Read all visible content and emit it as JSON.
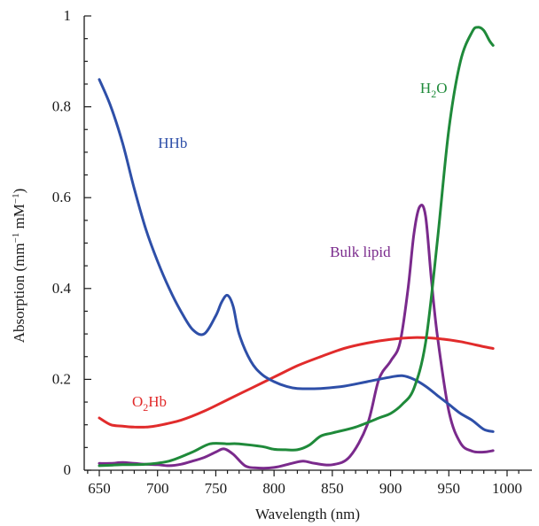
{
  "chart_data": {
    "type": "line",
    "title": "",
    "xlabel": "Wavelength (nm)",
    "ylabel": "Absorption (mm",
    "ylabel_sup1": "−1",
    "ylabel_mid": " mM",
    "ylabel_sup2": "−1",
    "ylabel_end": ")",
    "xlim": [
      630,
      1000
    ],
    "ylim": [
      0,
      1.0
    ],
    "x_ticks": [
      "650",
      "700",
      "750",
      "800",
      "850",
      "900",
      "950",
      "1000"
    ],
    "y_ticks": [
      "0",
      "0.2",
      "0.4",
      "0.6",
      "0.8",
      "1"
    ],
    "grid": false,
    "legend": "none",
    "series": [
      {
        "name": "HHb",
        "color": "#2e4fa8",
        "x": [
          650,
          660,
          670,
          680,
          690,
          700,
          710,
          720,
          730,
          740,
          750,
          755,
          760,
          765,
          770,
          780,
          790,
          800,
          810,
          820,
          840,
          860,
          880,
          900,
          910,
          920,
          930,
          940,
          950,
          960,
          970,
          980,
          988
        ],
        "y": [
          0.86,
          0.8,
          0.72,
          0.62,
          0.53,
          0.46,
          0.4,
          0.35,
          0.31,
          0.3,
          0.34,
          0.37,
          0.385,
          0.36,
          0.3,
          0.24,
          0.21,
          0.195,
          0.185,
          0.18,
          0.18,
          0.185,
          0.195,
          0.205,
          0.208,
          0.2,
          0.185,
          0.165,
          0.145,
          0.125,
          0.11,
          0.09,
          0.085
        ]
      },
      {
        "name": "O₂Hb",
        "label_main": "O",
        "label_sub": "2",
        "label_end": "Hb",
        "color": "#e12b2b",
        "x": [
          650,
          660,
          670,
          680,
          690,
          700,
          720,
          740,
          760,
          780,
          800,
          820,
          840,
          860,
          880,
          900,
          920,
          940,
          960,
          980,
          988
        ],
        "y": [
          0.115,
          0.1,
          0.097,
          0.095,
          0.095,
          0.098,
          0.11,
          0.13,
          0.155,
          0.18,
          0.205,
          0.23,
          0.25,
          0.268,
          0.28,
          0.288,
          0.292,
          0.29,
          0.283,
          0.272,
          0.268
        ]
      },
      {
        "name": "H₂O",
        "label_main": "H",
        "label_sub": "2",
        "label_end": "O",
        "color": "#1f8a3a",
        "x": [
          650,
          670,
          690,
          710,
          730,
          745,
          760,
          770,
          790,
          800,
          810,
          820,
          830,
          840,
          850,
          870,
          890,
          900,
          910,
          920,
          930,
          940,
          950,
          960,
          970,
          975,
          980,
          985,
          988
        ],
        "y": [
          0.01,
          0.012,
          0.013,
          0.02,
          0.04,
          0.058,
          0.058,
          0.058,
          0.052,
          0.046,
          0.045,
          0.045,
          0.055,
          0.075,
          0.082,
          0.095,
          0.115,
          0.125,
          0.145,
          0.18,
          0.28,
          0.5,
          0.75,
          0.9,
          0.965,
          0.975,
          0.968,
          0.945,
          0.935
        ]
      },
      {
        "name": "Bulk lipid",
        "color": "#7a2a8c",
        "x": [
          650,
          660,
          670,
          680,
          690,
          700,
          710,
          720,
          730,
          740,
          750,
          757,
          765,
          775,
          785,
          800,
          815,
          825,
          835,
          850,
          865,
          880,
          890,
          900,
          908,
          915,
          920,
          925,
          930,
          935,
          940,
          950,
          960,
          970,
          980,
          988
        ],
        "y": [
          0.015,
          0.015,
          0.017,
          0.015,
          0.013,
          0.012,
          0.01,
          0.013,
          0.02,
          0.028,
          0.04,
          0.047,
          0.035,
          0.01,
          0.005,
          0.006,
          0.015,
          0.02,
          0.015,
          0.012,
          0.03,
          0.1,
          0.2,
          0.24,
          0.28,
          0.4,
          0.52,
          0.58,
          0.56,
          0.42,
          0.3,
          0.13,
          0.06,
          0.042,
          0.04,
          0.043
        ]
      }
    ],
    "annotations": [
      {
        "series": "HHb",
        "text": "HHb",
        "x": 713,
        "y": 0.71
      },
      {
        "series": "O₂Hb",
        "text": "O₂Hb",
        "x": 693,
        "y": 0.14
      },
      {
        "series": "H₂O",
        "text": "H₂O",
        "x": 937,
        "y": 0.83
      },
      {
        "series": "Bulk lipid",
        "text": "Bulk lipid",
        "x": 874,
        "y": 0.47
      }
    ]
  }
}
